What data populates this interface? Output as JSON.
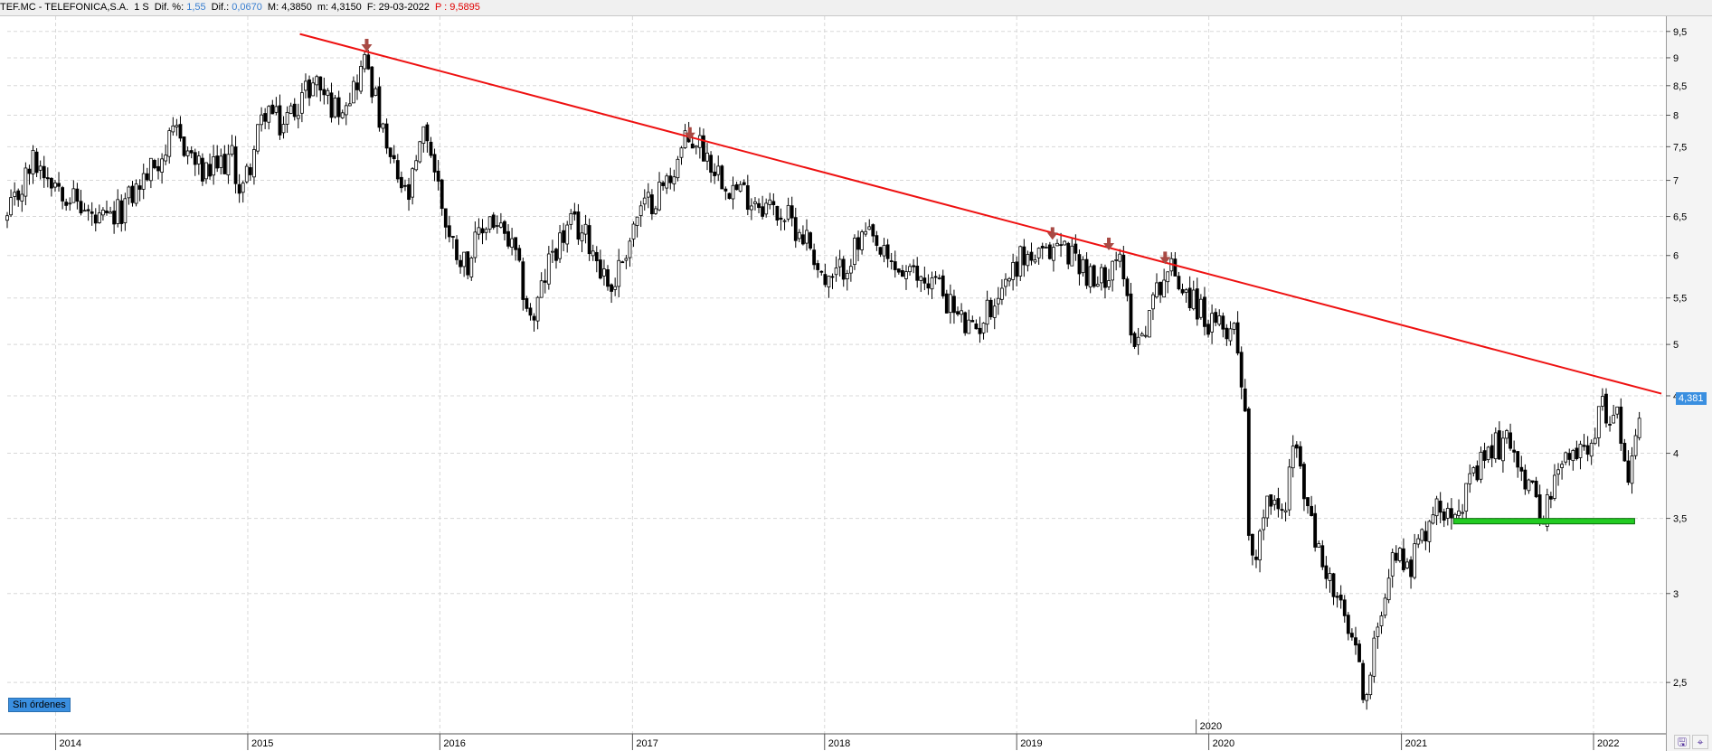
{
  "header": {
    "ticker": "TEF.MC - TELEFONICA,S.A.",
    "timeframe": "1 S",
    "dif_pct_label": "Dif. %:",
    "dif_pct_value": "1,55",
    "dif_label": "Dif.:",
    "dif_value": "0,0670",
    "max_label": "M:",
    "max_value": "4,3850",
    "min_label": "m:",
    "min_value": "4,3150",
    "date_label": "F:",
    "date_value": "29-03-2022",
    "price_label": "P :",
    "price_value": "9,5895"
  },
  "status_badge": "Sin órdenes",
  "last_price_tag": "4,381",
  "colors": {
    "trendline": "#ee1111",
    "support": "#22cc22",
    "arrow": "#a84a44",
    "candle": "#000000",
    "price_tag": "#3a8fe0"
  },
  "chart_data": {
    "type": "candlestick",
    "y_scale": "log",
    "ylim": [
      2.25,
      9.8
    ],
    "yticks": [
      "9,5",
      "9",
      "8,5",
      "8",
      "7,5",
      "7",
      "6,5",
      "6",
      "5,5",
      "5",
      "4,5",
      "4",
      "3,5",
      "3",
      "2,5"
    ],
    "ytick_values": [
      9.5,
      9,
      8.5,
      8,
      7.5,
      7,
      6.5,
      6,
      5.5,
      5,
      4.5,
      4,
      3.5,
      3,
      2.5
    ],
    "xlim": [
      "2013-10-01",
      "2022-05-15"
    ],
    "xticks": [
      "2014",
      "2015",
      "2016",
      "2017",
      "2018",
      "2019",
      "2020",
      "2021",
      "2022"
    ],
    "xtick_dates": [
      "2014-01-01",
      "2015-01-01",
      "2016-01-01",
      "2017-01-01",
      "2018-01-01",
      "2019-01-01",
      "2020-01-01",
      "2021-01-01",
      "2022-01-01"
    ],
    "xtick_extra_label": "2020",
    "series_points": [
      [
        "2013-10-01",
        6.45
      ],
      [
        "2013-11-20",
        7.3
      ],
      [
        "2014-01-15",
        6.9
      ],
      [
        "2014-03-20",
        6.4
      ],
      [
        "2014-04-20",
        6.45
      ],
      [
        "2014-07-10",
        7.25
      ],
      [
        "2014-08-20",
        7.7
      ],
      [
        "2014-10-10",
        7.05
      ],
      [
        "2014-12-01",
        7.35
      ],
      [
        "2014-12-20",
        6.8
      ],
      [
        "2015-02-05",
        8.15
      ],
      [
        "2015-03-05",
        7.8
      ],
      [
        "2015-04-15",
        8.35
      ],
      [
        "2015-05-10",
        8.6
      ],
      [
        "2015-06-15",
        8.1
      ],
      [
        "2015-07-20",
        8.45
      ],
      [
        "2015-08-15",
        9.0
      ],
      [
        "2015-09-20",
        7.45
      ],
      [
        "2015-11-01",
        6.7
      ],
      [
        "2015-12-05",
        7.8
      ],
      [
        "2016-01-20",
        6.2
      ],
      [
        "2016-02-20",
        5.9
      ],
      [
        "2016-04-05",
        6.5
      ],
      [
        "2016-05-20",
        6.05
      ],
      [
        "2016-06-24",
        5.2
      ],
      [
        "2016-08-01",
        6.05
      ],
      [
        "2016-09-10",
        6.4
      ],
      [
        "2016-10-10",
        6.2
      ],
      [
        "2016-11-22",
        5.6
      ],
      [
        "2017-01-10",
        6.5
      ],
      [
        "2017-03-10",
        7.0
      ],
      [
        "2017-04-10",
        7.55
      ],
      [
        "2017-05-05",
        7.6
      ],
      [
        "2017-06-01",
        7.25
      ],
      [
        "2017-07-10",
        6.9
      ],
      [
        "2017-09-01",
        6.7
      ],
      [
        "2017-10-20",
        6.5
      ],
      [
        "2017-12-01",
        6.2
      ],
      [
        "2018-01-05",
        5.6
      ],
      [
        "2018-03-20",
        6.25
      ],
      [
        "2018-05-01",
        5.9
      ],
      [
        "2018-06-10",
        5.75
      ],
      [
        "2018-08-01",
        5.7
      ],
      [
        "2018-09-10",
        5.3
      ],
      [
        "2018-10-10",
        5.1
      ],
      [
        "2018-11-20",
        5.5
      ],
      [
        "2019-01-10",
        6.0
      ],
      [
        "2019-02-20",
        5.95
      ],
      [
        "2019-03-20",
        6.15
      ],
      [
        "2019-05-01",
        5.95
      ],
      [
        "2019-06-01",
        5.6
      ],
      [
        "2019-07-10",
        6.05
      ],
      [
        "2019-08-15",
        5.0
      ],
      [
        "2019-09-01",
        5.2
      ],
      [
        "2019-10-01",
        5.7
      ],
      [
        "2019-10-20",
        5.85
      ],
      [
        "2019-12-01",
        5.5
      ],
      [
        "2020-01-10",
        5.15
      ],
      [
        "2020-02-20",
        5.2
      ],
      [
        "2020-03-10",
        4.4
      ],
      [
        "2020-03-20",
        3.1
      ],
      [
        "2020-04-20",
        3.7
      ],
      [
        "2020-05-20",
        3.5
      ],
      [
        "2020-06-10",
        4.1
      ],
      [
        "2020-07-20",
        3.35
      ],
      [
        "2020-09-01",
        2.95
      ],
      [
        "2020-10-01",
        2.7
      ],
      [
        "2020-10-28",
        2.4
      ],
      [
        "2020-11-20",
        2.9
      ],
      [
        "2020-12-15",
        3.25
      ],
      [
        "2021-01-20",
        3.2
      ],
      [
        "2021-03-01",
        3.55
      ],
      [
        "2021-05-01",
        3.65
      ],
      [
        "2021-06-20",
        4.05
      ],
      [
        "2021-08-01",
        4.1
      ],
      [
        "2021-09-01",
        3.7
      ],
      [
        "2021-10-01",
        3.55
      ],
      [
        "2021-11-01",
        3.9
      ],
      [
        "2021-12-15",
        4.05
      ],
      [
        "2022-01-20",
        4.4
      ],
      [
        "2022-02-20",
        4.25
      ],
      [
        "2022-03-10",
        3.8
      ],
      [
        "2022-03-29",
        4.38
      ]
    ],
    "trendline": {
      "start": [
        "2015-04-10",
        9.45
      ],
      "end": [
        "2022-05-10",
        4.52
      ]
    },
    "support_line": {
      "start": [
        "2021-04-10",
        3.48
      ],
      "end": [
        "2022-03-20",
        3.48
      ]
    },
    "arrow_markers": [
      [
        "2015-08-15",
        9.05
      ],
      [
        "2017-04-20",
        7.55
      ],
      [
        "2019-03-10",
        6.15
      ],
      [
        "2019-06-25",
        6.02
      ],
      [
        "2019-10-10",
        5.85
      ]
    ]
  }
}
